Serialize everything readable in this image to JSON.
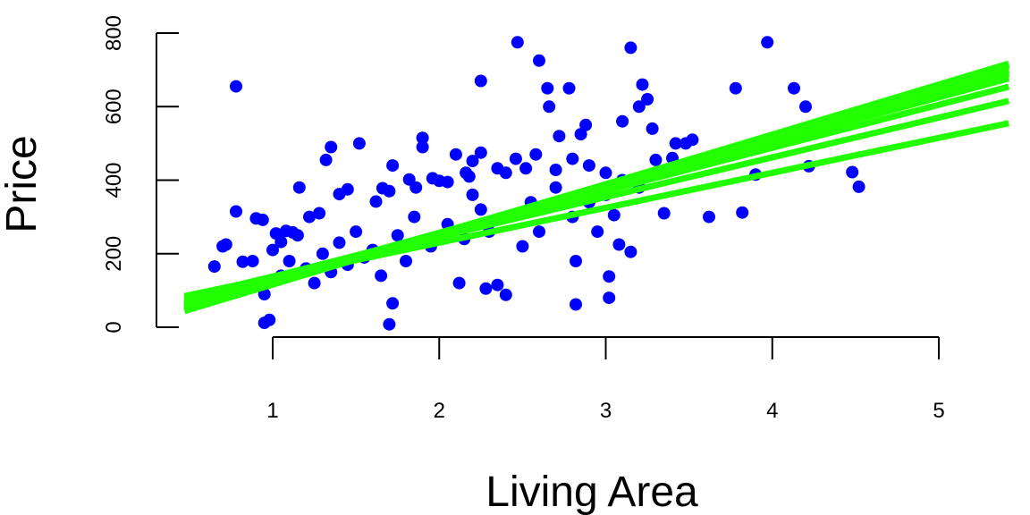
{
  "chart_data": {
    "type": "scatter",
    "title": "",
    "xlabel": "Living Area",
    "ylabel": "Price",
    "xlim": [
      0.47,
      5.42
    ],
    "ylim": [
      0,
      800
    ],
    "x_ticks": [
      1,
      2,
      3,
      4,
      5
    ],
    "y_ticks": [
      0,
      200,
      400,
      600,
      800
    ],
    "grid": false,
    "legend": "none",
    "point_color": "#0000ff",
    "line_color": "#22ff00",
    "points": [
      [
        0.78,
        655
      ],
      [
        0.72,
        225
      ],
      [
        0.65,
        165
      ],
      [
        0.7,
        220
      ],
      [
        0.78,
        315
      ],
      [
        0.82,
        178
      ],
      [
        0.88,
        180
      ],
      [
        0.9,
        296
      ],
      [
        0.94,
        292
      ],
      [
        0.95,
        12
      ],
      [
        0.98,
        20
      ],
      [
        1.0,
        210
      ],
      [
        1.02,
        255
      ],
      [
        1.05,
        232
      ],
      [
        1.08,
        262
      ],
      [
        1.12,
        258
      ],
      [
        1.15,
        250
      ],
      [
        1.16,
        380
      ],
      [
        1.22,
        300
      ],
      [
        1.28,
        310
      ],
      [
        1.32,
        455
      ],
      [
        1.35,
        490
      ],
      [
        1.4,
        362
      ],
      [
        1.45,
        375
      ],
      [
        1.52,
        500
      ],
      [
        1.62,
        342
      ],
      [
        1.66,
        378
      ],
      [
        1.7,
        370
      ],
      [
        1.72,
        440
      ],
      [
        1.7,
        8
      ],
      [
        1.72,
        65
      ],
      [
        1.82,
        402
      ],
      [
        1.86,
        380
      ],
      [
        1.9,
        490
      ],
      [
        1.9,
        515
      ],
      [
        1.96,
        405
      ],
      [
        2.0,
        398
      ],
      [
        2.05,
        395
      ],
      [
        2.1,
        470
      ],
      [
        2.16,
        420
      ],
      [
        2.2,
        360
      ],
      [
        2.25,
        475
      ],
      [
        2.25,
        670
      ],
      [
        2.2,
        452
      ],
      [
        2.18,
        410
      ],
      [
        2.12,
        120
      ],
      [
        2.28,
        105
      ],
      [
        2.35,
        115
      ],
      [
        2.4,
        88
      ],
      [
        2.35,
        432
      ],
      [
        2.4,
        420
      ],
      [
        2.46,
        458
      ],
      [
        2.47,
        775
      ],
      [
        2.52,
        432
      ],
      [
        2.58,
        470
      ],
      [
        2.6,
        725
      ],
      [
        2.65,
        650
      ],
      [
        2.66,
        600
      ],
      [
        2.7,
        428
      ],
      [
        2.72,
        520
      ],
      [
        2.78,
        650
      ],
      [
        2.8,
        458
      ],
      [
        2.82,
        62
      ],
      [
        2.82,
        180
      ],
      [
        2.85,
        525
      ],
      [
        2.88,
        550
      ],
      [
        2.9,
        440
      ],
      [
        2.95,
        260
      ],
      [
        3.0,
        420
      ],
      [
        3.02,
        138
      ],
      [
        3.02,
        80
      ],
      [
        3.05,
        305
      ],
      [
        3.08,
        225
      ],
      [
        3.1,
        560
      ],
      [
        3.15,
        760
      ],
      [
        3.15,
        205
      ],
      [
        3.2,
        600
      ],
      [
        3.22,
        660
      ],
      [
        3.25,
        620
      ],
      [
        3.28,
        540
      ],
      [
        3.3,
        455
      ],
      [
        3.35,
        310
      ],
      [
        3.42,
        500
      ],
      [
        3.48,
        500
      ],
      [
        3.52,
        510
      ],
      [
        3.62,
        300
      ],
      [
        3.78,
        650
      ],
      [
        3.82,
        312
      ],
      [
        3.9,
        415
      ],
      [
        3.97,
        775
      ],
      [
        4.13,
        650
      ],
      [
        4.2,
        600
      ],
      [
        4.22,
        438
      ],
      [
        4.48,
        422
      ],
      [
        4.52,
        382
      ],
      [
        0.85,
        110
      ],
      [
        0.95,
        90
      ],
      [
        1.05,
        140
      ],
      [
        1.1,
        180
      ],
      [
        1.2,
        160
      ],
      [
        1.25,
        120
      ],
      [
        1.3,
        200
      ],
      [
        1.35,
        150
      ],
      [
        1.4,
        230
      ],
      [
        1.45,
        170
      ],
      [
        1.5,
        260
      ],
      [
        1.55,
        190
      ],
      [
        1.6,
        210
      ],
      [
        1.65,
        140
      ],
      [
        1.75,
        250
      ],
      [
        1.8,
        180
      ],
      [
        1.85,
        300
      ],
      [
        1.95,
        220
      ],
      [
        2.05,
        280
      ],
      [
        2.15,
        240
      ],
      [
        2.25,
        320
      ],
      [
        2.3,
        260
      ],
      [
        2.4,
        300
      ],
      [
        2.5,
        220
      ],
      [
        2.55,
        340
      ],
      [
        2.6,
        260
      ],
      [
        2.7,
        380
      ],
      [
        2.8,
        300
      ],
      [
        2.9,
        340
      ],
      [
        3.0,
        360
      ],
      [
        3.1,
        400
      ],
      [
        3.2,
        380
      ],
      [
        3.3,
        420
      ],
      [
        3.4,
        460
      ]
    ],
    "lines": [
      {
        "intercept": 5,
        "slope": 126
      },
      {
        "intercept": 10,
        "slope": 123
      },
      {
        "intercept": 0,
        "slope": 128
      },
      {
        "intercept": -5,
        "slope": 130
      },
      {
        "intercept": -10,
        "slope": 133
      },
      {
        "intercept": -15,
        "slope": 134
      },
      {
        "intercept": -20,
        "slope": 136
      },
      {
        "intercept": 20,
        "slope": 117
      },
      {
        "intercept": 30,
        "slope": 108
      },
      {
        "intercept": 40,
        "slope": 95
      }
    ]
  }
}
